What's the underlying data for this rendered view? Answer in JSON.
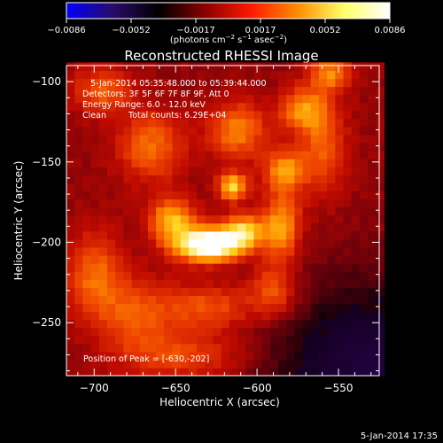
{
  "colorbar": {
    "ticks": [
      "−0.0086",
      "−0.0052",
      "−0.0017",
      "0.0017",
      "0.0052",
      "0.0086"
    ],
    "units_prefix": "(photons cm",
    "units_exp1": "−2",
    "units_mid": " s",
    "units_exp2": "−1",
    "units_mid2": " asec",
    "units_exp3": "−2",
    "units_suffix": ")",
    "colors": [
      "#0000ff",
      "#2a0a6a",
      "#000000",
      "#8a0000",
      "#ff1a00",
      "#ff8c00",
      "#ffff66",
      "#ffffff"
    ]
  },
  "footer": {
    "timestamp": "5-Jan-2014 17:35"
  },
  "chart_data": {
    "type": "heatmap",
    "title": "Reconstructed RHESSI Image",
    "xlabel": "Heliocentric X (arcsec)",
    "ylabel": "Heliocentric Y (arcsec)",
    "xlim": [
      -717,
      -525
    ],
    "ylim": [
      -283,
      -90
    ],
    "x_ticks": [
      -700,
      -650,
      -600,
      -550
    ],
    "y_ticks": [
      -100,
      -150,
      -200,
      -250
    ],
    "annotations": {
      "time": "5-Jan-2014 05:35:48.000 to 05:39:44.000",
      "detectors": "Detectors: 3F 5F 6F 7F 8F 9F, Att 0",
      "energy": "Energy Range: 6.0 - 12.0 keV",
      "clean_label": "Clean",
      "counts": "Total counts: 6.29E+04",
      "peak": "Position of Peak = [-630,-202]"
    },
    "peak": {
      "x": -630,
      "y": -202
    },
    "sources": [
      {
        "x": -630,
        "y": -201,
        "sx": 14,
        "sy": 7,
        "amp": 1.0
      },
      {
        "x": -608,
        "y": -193,
        "sx": 9,
        "sy": 7,
        "amp": 0.55
      },
      {
        "x": -652,
        "y": -186,
        "sx": 10,
        "sy": 9,
        "amp": 0.5
      },
      {
        "x": -615,
        "y": -165,
        "sx": 6,
        "sy": 6,
        "amp": 0.58
      },
      {
        "x": -585,
        "y": -190,
        "sx": 8,
        "sy": 14,
        "amp": 0.45
      },
      {
        "x": -583,
        "y": -155,
        "sx": 9,
        "sy": 9,
        "amp": 0.42
      },
      {
        "x": -612,
        "y": -130,
        "sx": 12,
        "sy": 12,
        "amp": 0.38
      },
      {
        "x": -572,
        "y": -117,
        "sx": 10,
        "sy": 9,
        "amp": 0.4
      },
      {
        "x": -555,
        "y": -95,
        "sx": 9,
        "sy": 7,
        "amp": 0.38
      },
      {
        "x": -665,
        "y": -140,
        "sx": 14,
        "sy": 15,
        "amp": 0.33
      },
      {
        "x": -695,
        "y": -105,
        "sx": 12,
        "sy": 10,
        "amp": 0.3
      },
      {
        "x": -700,
        "y": -220,
        "sx": 12,
        "sy": 18,
        "amp": 0.32
      },
      {
        "x": -675,
        "y": -245,
        "sx": 16,
        "sy": 16,
        "amp": 0.28
      },
      {
        "x": -630,
        "y": -240,
        "sx": 20,
        "sy": 10,
        "amp": 0.28
      },
      {
        "x": -590,
        "y": -230,
        "sx": 10,
        "sy": 12,
        "amp": 0.3
      },
      {
        "x": -645,
        "y": -270,
        "sx": 25,
        "sy": 10,
        "amp": 0.25
      },
      {
        "x": -560,
        "y": -140,
        "sx": 10,
        "sy": 20,
        "amp": 0.3
      }
    ],
    "background_level": 0.22,
    "negative_region": {
      "x": -525,
      "y": -283,
      "sx": 45,
      "sy": 40,
      "amp": -0.4
    },
    "cmin": -0.0086,
    "cmax": 0.0086
  }
}
